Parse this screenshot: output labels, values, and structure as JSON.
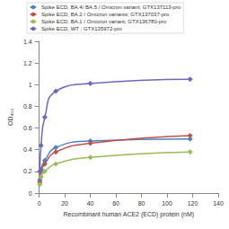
{
  "chart_data": {
    "type": "line",
    "x_label": "Recombinant human ACE2 (ECD) protein (nM)",
    "y_label": "OD₄₅₀",
    "series": [
      {
        "name": "Spike ECD, BA.4/ BA.5 / Omicron variant; GTX137113-pro",
        "color": "#4f81bd",
        "x": [
          0.5,
          1.5,
          4.4,
          13,
          40,
          118
        ],
        "values": [
          0.12,
          0.22,
          0.3,
          0.42,
          0.48,
          0.5
        ]
      },
      {
        "name": "Spike ECD, BA.2 / Omicron variants; GTX137037-pro",
        "color": "#c0504d",
        "x": [
          0.5,
          1.5,
          4.4,
          13,
          40,
          118
        ],
        "values": [
          0.1,
          0.2,
          0.27,
          0.38,
          0.46,
          0.53
        ]
      },
      {
        "name": "Spike ECD, BA.1 / Omicron variant; GTX136780-pro",
        "color": "#9bbb59",
        "x": [
          0.5,
          1.5,
          4.4,
          13,
          40,
          118
        ],
        "values": [
          0.08,
          0.15,
          0.2,
          0.27,
          0.33,
          0.38
        ]
      },
      {
        "name": "Spike ECD, WT ; GTX135972-pro",
        "color": "#6a6ab8",
        "x": [
          0.5,
          1.5,
          4.4,
          13,
          40,
          118
        ],
        "values": [
          0.2,
          0.44,
          0.7,
          0.94,
          1.01,
          1.05
        ]
      }
    ],
    "xlim": [
      0,
      140
    ],
    "xticks": [
      0,
      20,
      40,
      60,
      80,
      100,
      120,
      140
    ],
    "ylim": [
      0,
      1.4
    ],
    "yticks": [
      0,
      0.2,
      0.4,
      0.6,
      0.8,
      1,
      1.2,
      1.4
    ],
    "grid": false,
    "legend": "top-left",
    "marker": "diamond",
    "line_style": "solid"
  }
}
